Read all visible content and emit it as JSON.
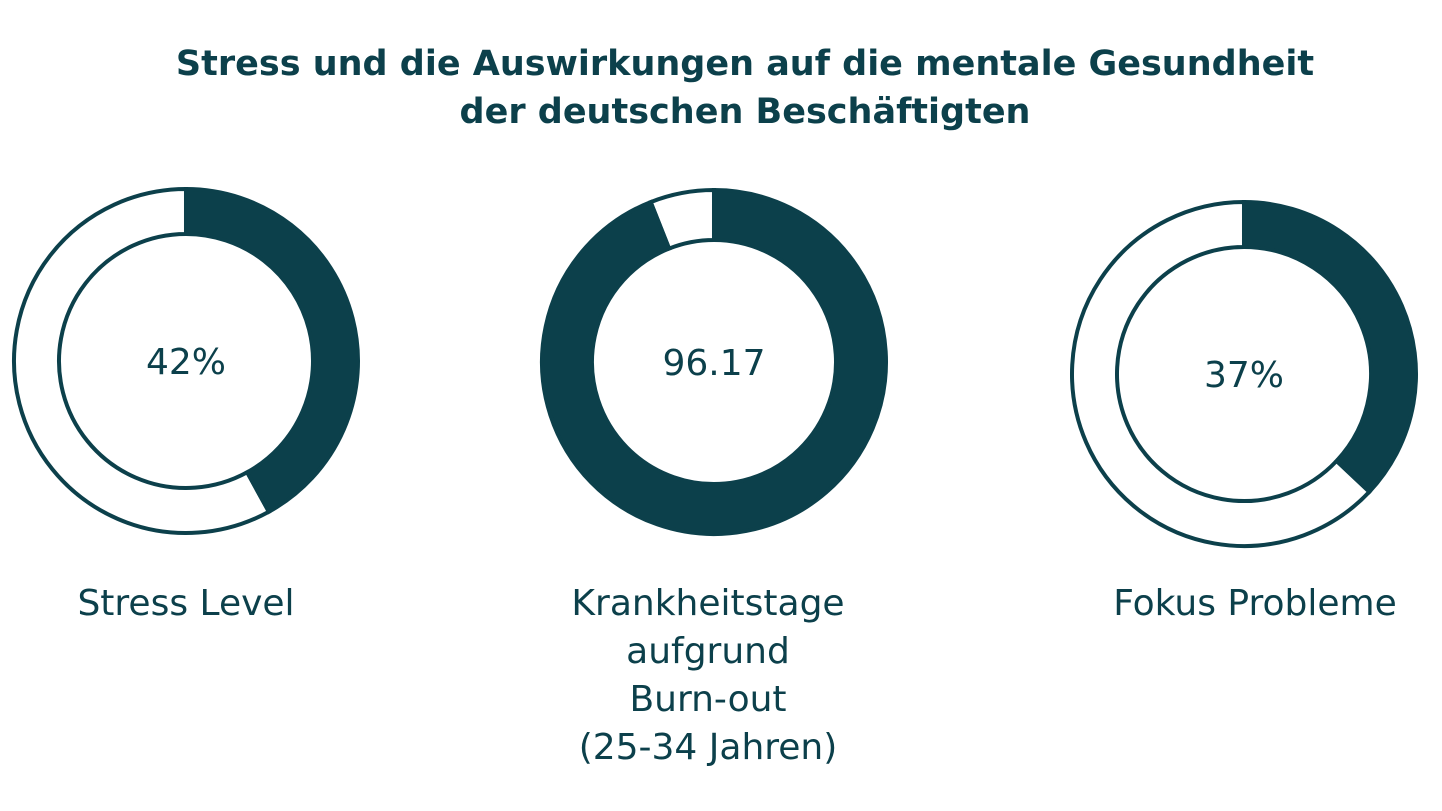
{
  "chart_data": {
    "type": "pie",
    "title": "Stress und die Auswirkungen auf die mentale Gesundheit der deutschen Beschäftigten",
    "title_lines": [
      "Stress und die Auswirkungen auf die mentale Gesundheit",
      "der deutschen Beschäftigten"
    ],
    "color": "#0c404b",
    "donuts": [
      {
        "label": "Stress Level",
        "label_lines": [
          "Stress Level"
        ],
        "value_text": "42%",
        "fill_fraction": 0.42
      },
      {
        "label": "Krankheitstage aufgrund Burn-out (25-34 Jahren)",
        "label_lines": [
          "Krankheitstage",
          "aufgrund",
          "Burn-out",
          "(25-34 Jahren)"
        ],
        "value_text": "96.17",
        "fill_fraction": 0.94
      },
      {
        "label": "Fokus Probleme",
        "label_lines": [
          "Fokus Probleme"
        ],
        "value_text": "37%",
        "fill_fraction": 0.37
      }
    ]
  }
}
